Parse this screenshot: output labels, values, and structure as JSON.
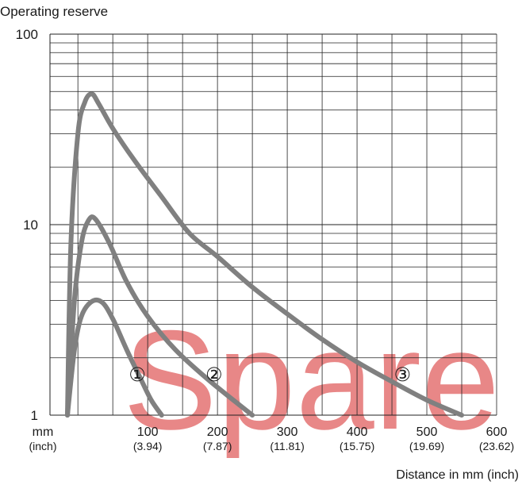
{
  "chart_data": {
    "type": "line",
    "ylabel": "Operating reserve",
    "xlabel": "Distance in mm (inch)",
    "yscale": "log",
    "ylim": [
      1,
      100
    ],
    "xlim": [
      -40,
      600
    ],
    "y_ticks": [
      "1",
      "10",
      "100"
    ],
    "x_unit_labels": [
      "mm",
      "(inch)"
    ],
    "x_ticks": [
      {
        "value": 100,
        "mm": "100",
        "inch": "(3.94)"
      },
      {
        "value": 200,
        "mm": "200",
        "inch": "(7.87)"
      },
      {
        "value": 300,
        "mm": "300",
        "inch": "(11.81)"
      },
      {
        "value": 400,
        "mm": "400",
        "inch": "(15.75)"
      },
      {
        "value": 500,
        "mm": "500",
        "inch": "(19.69)"
      },
      {
        "value": 600,
        "mm": "600",
        "inch": "(23.62)"
      }
    ],
    "grid": true,
    "series_color": "#808080",
    "watermark_color": "#e05a5a",
    "series": [
      {
        "label": "①",
        "label_at": [
          85,
          1.65
        ],
        "points": [
          [
            -15,
            1
          ],
          [
            -5,
            2.2
          ],
          [
            5,
            3.3
          ],
          [
            20,
            3.95
          ],
          [
            35,
            3.9
          ],
          [
            50,
            3.2
          ],
          [
            70,
            2.2
          ],
          [
            90,
            1.55
          ],
          [
            105,
            1.2
          ],
          [
            120,
            1
          ]
        ]
      },
      {
        "label": "②",
        "label_at": [
          195,
          1.65
        ],
        "points": [
          [
            -15,
            1
          ],
          [
            -5,
            4
          ],
          [
            5,
            8
          ],
          [
            15,
            10.5
          ],
          [
            25,
            10.7
          ],
          [
            45,
            8
          ],
          [
            70,
            5
          ],
          [
            100,
            3.3
          ],
          [
            140,
            2.2
          ],
          [
            190,
            1.5
          ],
          [
            250,
            1
          ]
        ]
      },
      {
        "label": "③",
        "label_at": [
          465,
          1.65
        ],
        "points": [
          [
            -15,
            1
          ],
          [
            -10,
            8
          ],
          [
            0,
            30
          ],
          [
            10,
            44
          ],
          [
            20,
            48.5
          ],
          [
            30,
            43
          ],
          [
            50,
            32
          ],
          [
            80,
            22
          ],
          [
            120,
            14
          ],
          [
            160,
            9
          ],
          [
            200,
            6.8
          ],
          [
            250,
            4.7
          ],
          [
            300,
            3.4
          ],
          [
            350,
            2.5
          ],
          [
            400,
            1.9
          ],
          [
            450,
            1.5
          ],
          [
            500,
            1.2
          ],
          [
            550,
            1
          ]
        ]
      }
    ]
  },
  "watermark": {
    "text": "Spare"
  }
}
